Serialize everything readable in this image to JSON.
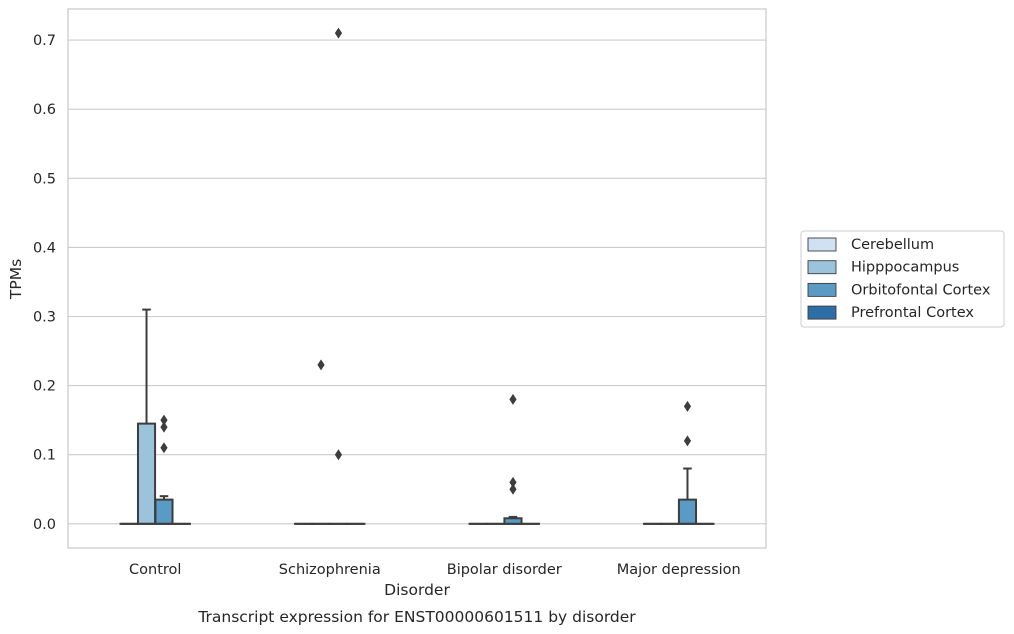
{
  "caption": "Transcript expression for ENST00000601511 by disorder",
  "chart_data": {
    "type": "box",
    "xlabel": "Disorder",
    "ylabel": "TPMs",
    "ylim": [
      -0.035,
      0.745
    ],
    "yticks": [
      0.0,
      0.1,
      0.2,
      0.3,
      0.4,
      0.5,
      0.6,
      0.7
    ],
    "ytick_labels": [
      "0.0",
      "0.1",
      "0.2",
      "0.3",
      "0.4",
      "0.5",
      "0.6",
      "0.7"
    ],
    "grid": "horizontal",
    "legend_position": "right",
    "categories": [
      "Control",
      "Schizophrenia",
      "Bipolar disorder",
      "Major depression"
    ],
    "series": [
      {
        "name": "Cerebellum",
        "color": "#d0e1f1",
        "boxes": [
          {
            "q1": 0,
            "median": 0,
            "q3": 0,
            "whisker_low": 0,
            "whisker_high": 0,
            "outliers": []
          },
          {
            "q1": 0,
            "median": 0,
            "q3": 0,
            "whisker_low": 0,
            "whisker_high": 0,
            "outliers": []
          },
          {
            "q1": 0,
            "median": 0,
            "q3": 0,
            "whisker_low": 0,
            "whisker_high": 0,
            "outliers": []
          },
          {
            "q1": 0,
            "median": 0,
            "q3": 0,
            "whisker_low": 0,
            "whisker_high": 0,
            "outliers": []
          }
        ]
      },
      {
        "name": "Hipppocampus",
        "color": "#9cc3dc",
        "boxes": [
          {
            "q1": 0,
            "median": 0,
            "q3": 0.145,
            "whisker_low": 0,
            "whisker_high": 0.31,
            "outliers": []
          },
          {
            "q1": 0,
            "median": 0,
            "q3": 0,
            "whisker_low": 0,
            "whisker_high": 0,
            "outliers": [
              0.23
            ]
          },
          {
            "q1": 0,
            "median": 0,
            "q3": 0,
            "whisker_low": 0,
            "whisker_high": 0,
            "outliers": []
          },
          {
            "q1": 0,
            "median": 0,
            "q3": 0,
            "whisker_low": 0,
            "whisker_high": 0,
            "outliers": []
          }
        ]
      },
      {
        "name": "Orbitofontal Cortex",
        "color": "#5a9bc6",
        "boxes": [
          {
            "q1": 0,
            "median": 0,
            "q3": 0.035,
            "whisker_low": 0,
            "whisker_high": 0.04,
            "outliers": [
              0.11,
              0.14,
              0.15
            ]
          },
          {
            "q1": 0,
            "median": 0,
            "q3": 0,
            "whisker_low": 0,
            "whisker_high": 0,
            "outliers": [
              0.1,
              0.71
            ]
          },
          {
            "q1": 0,
            "median": 0,
            "q3": 0.008,
            "whisker_low": 0,
            "whisker_high": 0.01,
            "outliers": [
              0.05,
              0.06,
              0.18
            ]
          },
          {
            "q1": 0,
            "median": 0,
            "q3": 0.035,
            "whisker_low": 0,
            "whisker_high": 0.08,
            "outliers": [
              0.12,
              0.17
            ]
          }
        ]
      },
      {
        "name": "Prefrontal Cortex",
        "color": "#2e6ea6",
        "boxes": [
          {
            "q1": 0,
            "median": 0,
            "q3": 0,
            "whisker_low": 0,
            "whisker_high": 0,
            "outliers": []
          },
          {
            "q1": 0,
            "median": 0,
            "q3": 0,
            "whisker_low": 0,
            "whisker_high": 0,
            "outliers": []
          },
          {
            "q1": 0,
            "median": 0,
            "q3": 0,
            "whisker_low": 0,
            "whisker_high": 0,
            "outliers": []
          },
          {
            "q1": 0,
            "median": 0,
            "q3": 0,
            "whisker_low": 0,
            "whisker_high": 0,
            "outliers": []
          }
        ]
      }
    ]
  }
}
